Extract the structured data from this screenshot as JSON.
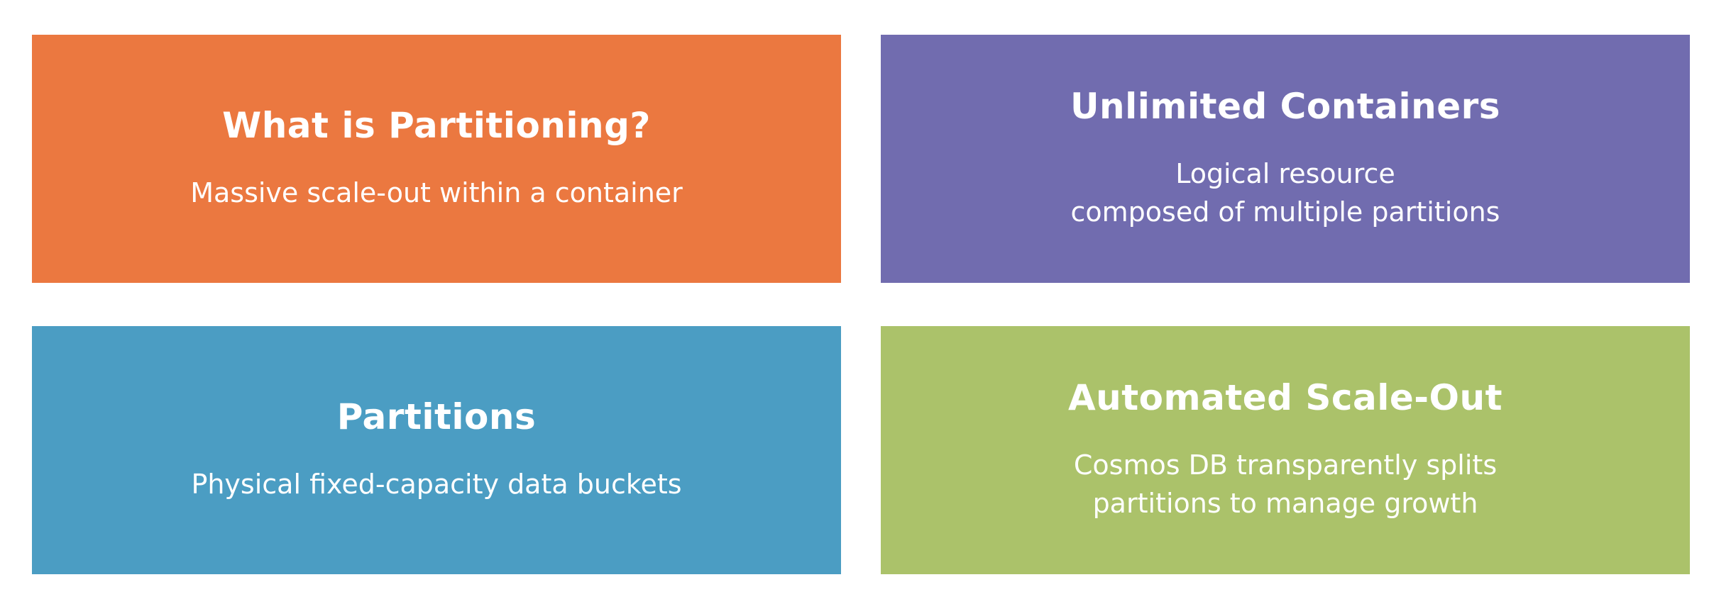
{
  "colors": {
    "background": "#ffffff",
    "text": "#ffffff",
    "orange": "#eb7840",
    "purple": "#716caf",
    "blue": "#4b9dc3",
    "green": "#abc26a"
  },
  "cards": [
    {
      "title": "What is Partitioning?",
      "lines": [
        "Massive scale-out within a container"
      ],
      "color": "#eb7840"
    },
    {
      "title": "Unlimited Containers",
      "lines": [
        "Logical resource",
        "composed of multiple partitions"
      ],
      "color": "#716caf"
    },
    {
      "title": "Partitions",
      "lines": [
        "Physical fixed-capacity data buckets"
      ],
      "color": "#4b9dc3"
    },
    {
      "title": "Automated Scale-Out",
      "lines": [
        "Cosmos DB transparently splits",
        "partitions to manage growth"
      ],
      "color": "#abc26a"
    }
  ]
}
